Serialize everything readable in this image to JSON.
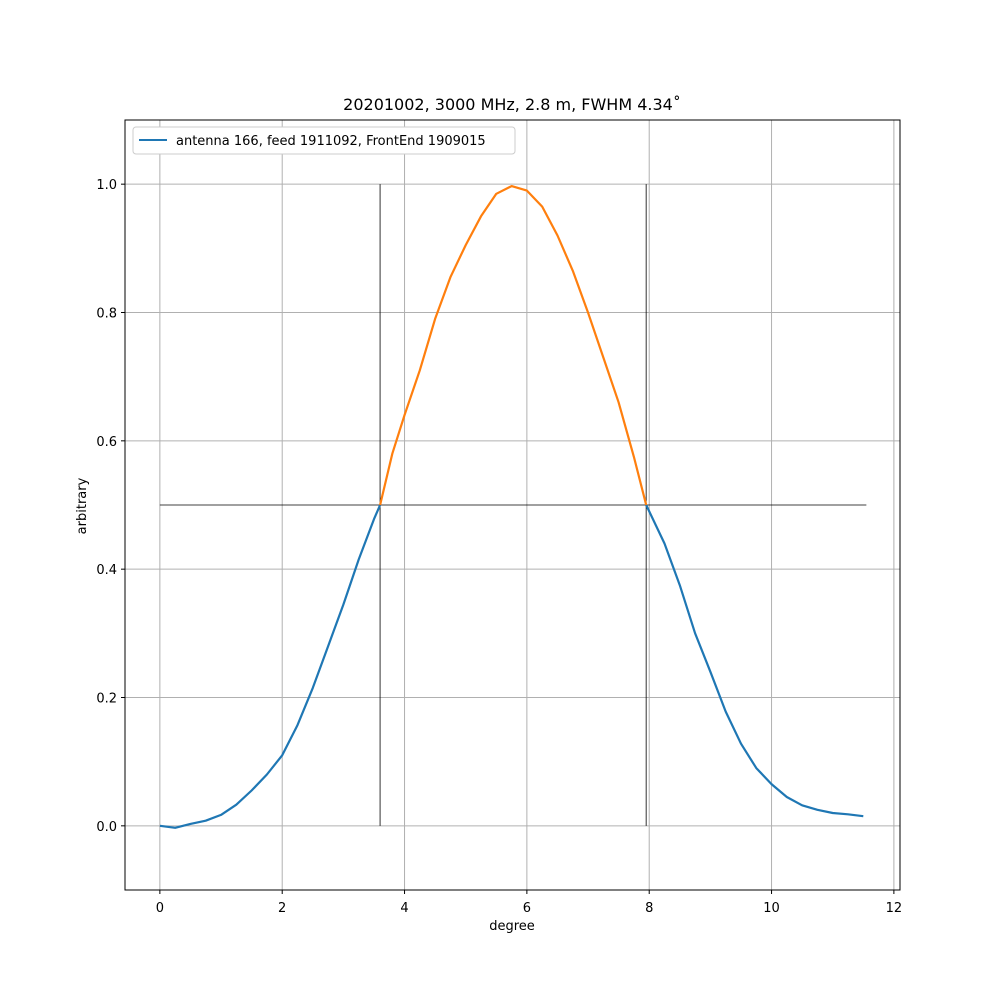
{
  "chart_data": {
    "type": "line",
    "title": "20201002, 3000 MHz, 2.8 m, FWHM 4.34˚",
    "xlabel": "degree",
    "ylabel": "arbitrary",
    "xlim": [
      -0.57,
      12.1
    ],
    "ylim": [
      -0.1,
      1.1
    ],
    "xticks": [
      0,
      2,
      4,
      6,
      8,
      10,
      12
    ],
    "yticks": [
      0.0,
      0.2,
      0.4,
      0.6,
      0.8,
      1.0
    ],
    "xtick_labels": [
      "0",
      "2",
      "4",
      "6",
      "8",
      "10",
      "12"
    ],
    "ytick_labels": [
      "0.0",
      "0.2",
      "0.4",
      "0.6",
      "0.8",
      "1.0"
    ],
    "grid": true,
    "legend": {
      "position": "top-left",
      "entries": [
        "antenna 166, feed 1911092, FrontEnd 1909015"
      ]
    },
    "series": [
      {
        "name": "antenna 166, feed 1911092, FrontEnd 1909015",
        "color": "#1f77b4",
        "x": [
          0,
          0.25,
          0.5,
          0.75,
          1.0,
          1.25,
          1.5,
          1.75,
          2.0,
          2.25,
          2.5,
          2.75,
          3.0,
          3.25,
          3.5,
          3.6,
          7.95,
          8.25,
          8.5,
          8.75,
          9.0,
          9.25,
          9.5,
          9.75,
          10.0,
          10.25,
          10.5,
          10.75,
          11.0,
          11.25,
          11.5
        ],
        "y": [
          0.0,
          -0.003,
          0.003,
          0.008,
          0.017,
          0.033,
          0.055,
          0.08,
          0.11,
          0.157,
          0.215,
          0.28,
          0.345,
          0.415,
          0.478,
          0.5,
          0.5,
          0.44,
          0.375,
          0.3,
          0.24,
          0.178,
          0.128,
          0.09,
          0.065,
          0.045,
          0.032,
          0.025,
          0.02,
          0.018,
          0.015
        ]
      },
      {
        "name": "",
        "color": "#ff7f0e",
        "x": [
          3.6,
          3.8,
          4.0,
          4.25,
          4.5,
          4.75,
          5.0,
          5.25,
          5.5,
          5.75,
          6.0,
          6.25,
          6.5,
          6.75,
          7.0,
          7.25,
          7.5,
          7.75,
          7.95
        ],
        "y": [
          0.5,
          0.58,
          0.64,
          0.71,
          0.79,
          0.855,
          0.905,
          0.95,
          0.985,
          0.997,
          0.99,
          0.965,
          0.92,
          0.865,
          0.8,
          0.73,
          0.66,
          0.575,
          0.5
        ]
      }
    ],
    "reference_lines": {
      "hline": {
        "y": 0.5,
        "xmin": 0,
        "xmax": 11.55
      },
      "vlines": [
        {
          "x": 3.6,
          "ymin": 0,
          "ymax": 1.0
        },
        {
          "x": 7.95,
          "ymin": 0,
          "ymax": 1.0
        }
      ]
    }
  }
}
